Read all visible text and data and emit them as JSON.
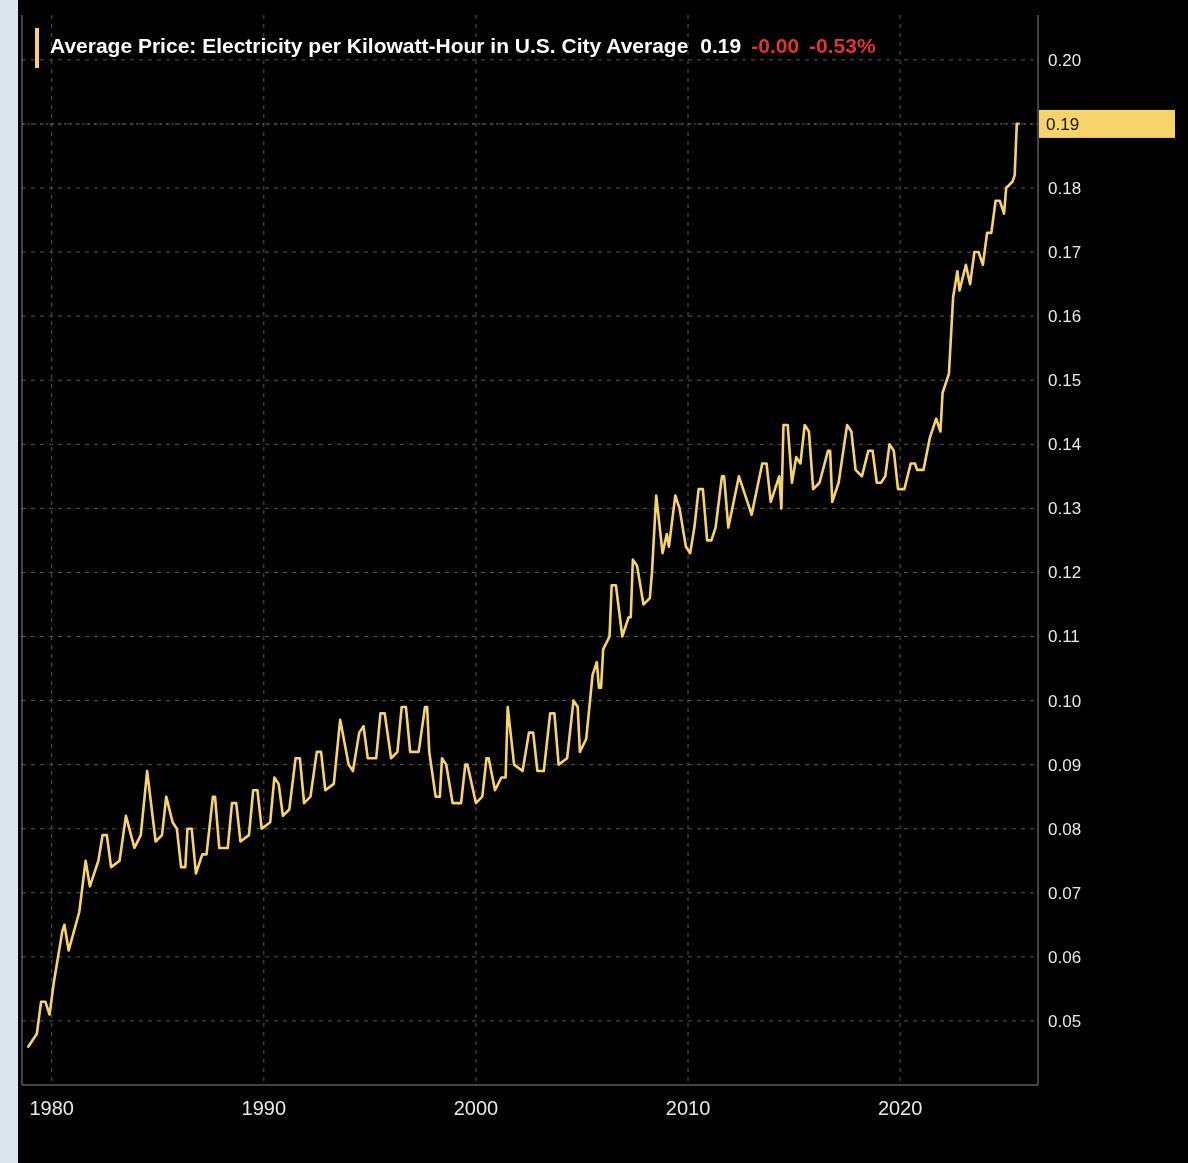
{
  "chart_data": {
    "type": "line",
    "title": "Average Price: Electricity per Kilowatt-Hour in U.S. City Average",
    "annotations": [
      "0.19",
      "-0.00",
      "-0.53%"
    ],
    "ref_lines": [
      {
        "axis": "y",
        "value": 0.19,
        "label": "0.19"
      }
    ],
    "x": [
      1978.9,
      1979.3,
      1979.5,
      1979.7,
      1979.9,
      1980.1,
      1980.5,
      1980.6,
      1980.8,
      1981.3,
      1981.6,
      1981.8,
      1982.2,
      1982.4,
      1982.6,
      1982.8,
      1983.2,
      1983.5,
      1983.9,
      1984.2,
      1984.5,
      1984.9,
      1985.2,
      1985.4,
      1985.7,
      1985.9,
      1986.1,
      1986.3,
      1986.4,
      1986.6,
      1986.8,
      1987.1,
      1987.3,
      1987.6,
      1987.7,
      1987.9,
      1988.3,
      1988.5,
      1988.7,
      1988.9,
      1989.3,
      1989.5,
      1989.7,
      1989.9,
      1990.3,
      1990.5,
      1990.7,
      1990.9,
      1991.2,
      1991.5,
      1991.7,
      1991.9,
      1992.2,
      1992.5,
      1992.7,
      1992.9,
      1993.3,
      1993.6,
      1994.0,
      1994.2,
      1994.5,
      1994.7,
      1994.9,
      1995.3,
      1995.5,
      1995.7,
      1996.0,
      1996.3,
      1996.5,
      1996.7,
      1996.9,
      1997.3,
      1997.6,
      1997.7,
      1997.8,
      1998.1,
      1998.3,
      1998.4,
      1998.6,
      1998.9,
      1999.3,
      1999.5,
      1999.6,
      2000.0,
      2000.3,
      2000.5,
      2000.6,
      2000.9,
      2001.2,
      2001.4,
      2001.5,
      2001.8,
      2002.2,
      2002.5,
      2002.7,
      2002.9,
      2003.2,
      2003.5,
      2003.7,
      2003.9,
      2004.3,
      2004.6,
      2004.8,
      2004.9,
      2005.2,
      2005.5,
      2005.7,
      2005.8,
      2005.9,
      2006.0,
      2006.3,
      2006.4,
      2006.6,
      2006.9,
      2007.2,
      2007.3,
      2007.4,
      2007.6,
      2007.9,
      2008.2,
      2008.3,
      2008.5,
      2008.8,
      2009.0,
      2009.1,
      2009.4,
      2009.6,
      2009.9,
      2010.1,
      2010.3,
      2010.5,
      2010.7,
      2010.9,
      2011.1,
      2011.3,
      2011.6,
      2011.7,
      2011.9,
      2012.4,
      2012.6,
      2013.0,
      2013.5,
      2013.7,
      2013.9,
      2014.3,
      2014.4,
      2014.5,
      2014.7,
      2014.9,
      2015.1,
      2015.3,
      2015.5,
      2015.7,
      2015.9,
      2016.2,
      2016.6,
      2016.7,
      2016.8,
      2017.1,
      2017.5,
      2017.7,
      2017.9,
      2018.2,
      2018.5,
      2018.7,
      2018.9,
      2019.1,
      2019.3,
      2019.5,
      2019.7,
      2019.9,
      2020.2,
      2020.5,
      2020.7,
      2020.8,
      2021.1,
      2021.4,
      2021.7,
      2021.9,
      2022.0,
      2022.3,
      2022.5,
      2022.7,
      2022.8,
      2023.1,
      2023.3,
      2023.5,
      2023.7,
      2023.9,
      2024.1,
      2024.3,
      2024.5,
      2024.7,
      2024.9,
      2025.0,
      2025.3,
      2025.4,
      2025.5,
      2025.6
    ],
    "series": [
      {
        "color": "#f7d46a",
        "values": [
          0.046,
          0.048,
          0.053,
          0.053,
          0.051,
          0.056,
          0.064,
          0.065,
          0.061,
          0.067,
          0.075,
          0.071,
          0.075,
          0.079,
          0.079,
          0.074,
          0.075,
          0.082,
          0.077,
          0.079,
          0.089,
          0.078,
          0.079,
          0.085,
          0.081,
          0.08,
          0.074,
          0.074,
          0.08,
          0.08,
          0.073,
          0.076,
          0.076,
          0.085,
          0.085,
          0.077,
          0.077,
          0.084,
          0.084,
          0.078,
          0.079,
          0.086,
          0.086,
          0.08,
          0.081,
          0.088,
          0.087,
          0.082,
          0.083,
          0.091,
          0.091,
          0.084,
          0.085,
          0.092,
          0.092,
          0.086,
          0.087,
          0.097,
          0.09,
          0.089,
          0.095,
          0.096,
          0.091,
          0.091,
          0.098,
          0.098,
          0.091,
          0.092,
          0.099,
          0.099,
          0.092,
          0.092,
          0.099,
          0.099,
          0.092,
          0.085,
          0.085,
          0.091,
          0.09,
          0.084,
          0.084,
          0.09,
          0.09,
          0.084,
          0.085,
          0.091,
          0.091,
          0.086,
          0.088,
          0.088,
          0.099,
          0.09,
          0.089,
          0.095,
          0.095,
          0.089,
          0.089,
          0.098,
          0.098,
          0.09,
          0.091,
          0.1,
          0.099,
          0.092,
          0.094,
          0.104,
          0.106,
          0.102,
          0.102,
          0.108,
          0.11,
          0.118,
          0.118,
          0.11,
          0.113,
          0.113,
          0.122,
          0.121,
          0.115,
          0.116,
          0.12,
          0.132,
          0.123,
          0.126,
          0.124,
          0.132,
          0.13,
          0.124,
          0.123,
          0.127,
          0.133,
          0.133,
          0.125,
          0.125,
          0.127,
          0.135,
          0.135,
          0.127,
          0.135,
          0.133,
          0.129,
          0.137,
          0.137,
          0.131,
          0.135,
          0.13,
          0.143,
          0.143,
          0.134,
          0.138,
          0.137,
          0.143,
          0.142,
          0.133,
          0.134,
          0.139,
          0.139,
          0.131,
          0.134,
          0.143,
          0.142,
          0.136,
          0.135,
          0.139,
          0.139,
          0.134,
          0.134,
          0.135,
          0.14,
          0.139,
          0.133,
          0.133,
          0.137,
          0.137,
          0.136,
          0.136,
          0.141,
          0.144,
          0.142,
          0.148,
          0.151,
          0.163,
          0.167,
          0.164,
          0.168,
          0.165,
          0.17,
          0.17,
          0.168,
          0.173,
          0.173,
          0.178,
          0.178,
          0.176,
          0.18,
          0.181,
          0.182,
          0.19,
          0.19
        ]
      }
    ],
    "xlim": [
      1978.6,
      2026.5
    ],
    "ylim": [
      0.04,
      0.207
    ],
    "xticks": [
      1980,
      1990,
      2000,
      2010,
      2020
    ],
    "yticks": [
      {
        "value": 0.05,
        "label": "0.05"
      },
      {
        "value": 0.06,
        "label": "0.06"
      },
      {
        "value": 0.07,
        "label": "0.07"
      },
      {
        "value": 0.08,
        "label": "0.08"
      },
      {
        "value": 0.09,
        "label": "0.09"
      },
      {
        "value": 0.1,
        "label": "0.10"
      },
      {
        "value": 0.11,
        "label": "0.11"
      },
      {
        "value": 0.12,
        "label": "0.12"
      },
      {
        "value": 0.13,
        "label": "0.13"
      },
      {
        "value": 0.14,
        "label": "0.14"
      },
      {
        "value": 0.15,
        "label": "0.15"
      },
      {
        "value": 0.16,
        "label": "0.16"
      },
      {
        "value": 0.17,
        "label": "0.17"
      },
      {
        "value": 0.18,
        "label": "0.18"
      },
      {
        "value": 0.19,
        "label": null
      },
      {
        "value": 0.2,
        "label": "0.20"
      }
    ],
    "grid": true
  }
}
